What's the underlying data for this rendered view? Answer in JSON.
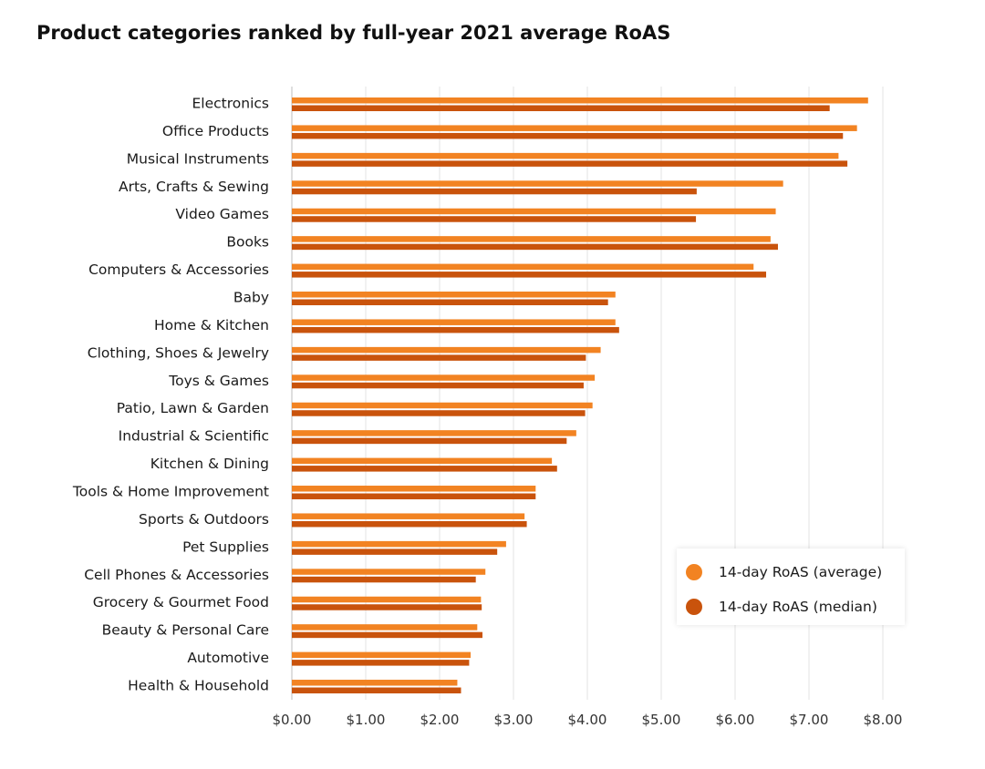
{
  "title": "Product categories ranked by full-year 2021 average RoAS",
  "colors": {
    "average": "#F28322",
    "median": "#C9530C"
  },
  "chart_data": {
    "type": "bar",
    "orientation": "horizontal",
    "title": "Product categories ranked by full-year 2021 average RoAS",
    "xlabel": "",
    "ylabel": "",
    "xlim": [
      0,
      8
    ],
    "grid": true,
    "legend_position": "bottom-right",
    "x_ticks": [
      "$0.00",
      "$1.00",
      "$2.00",
      "$3.00",
      "$4.00",
      "$5.00",
      "$6.00",
      "$7.00",
      "$8.00"
    ],
    "categories": [
      "Electronics",
      "Office Products",
      "Musical Instruments",
      "Arts, Crafts & Sewing",
      "Video Games",
      "Books",
      "Computers & Accessories",
      "Baby",
      "Home & Kitchen",
      "Clothing, Shoes & Jewelry",
      "Toys & Games",
      "Patio, Lawn & Garden",
      "Industrial & Scientific",
      "Kitchen & Dining",
      "Tools & Home Improvement",
      "Sports & Outdoors",
      "Pet Supplies",
      "Cell Phones & Accessories",
      "Grocery & Gourmet Food",
      "Beauty & Personal Care",
      "Automotive",
      "Health & Household"
    ],
    "series": [
      {
        "name": "14-day RoAS (average)",
        "values": [
          7.8,
          7.65,
          7.4,
          6.65,
          6.55,
          6.48,
          6.25,
          4.38,
          4.38,
          4.18,
          4.1,
          4.07,
          3.85,
          3.52,
          3.3,
          3.15,
          2.9,
          2.62,
          2.56,
          2.51,
          2.42,
          2.24
        ]
      },
      {
        "name": "14-day RoAS (median)",
        "values": [
          7.28,
          7.46,
          7.52,
          5.48,
          5.47,
          6.58,
          6.42,
          4.28,
          4.43,
          3.98,
          3.95,
          3.97,
          3.72,
          3.59,
          3.3,
          3.18,
          2.78,
          2.49,
          2.57,
          2.58,
          2.4,
          2.29
        ]
      }
    ]
  }
}
